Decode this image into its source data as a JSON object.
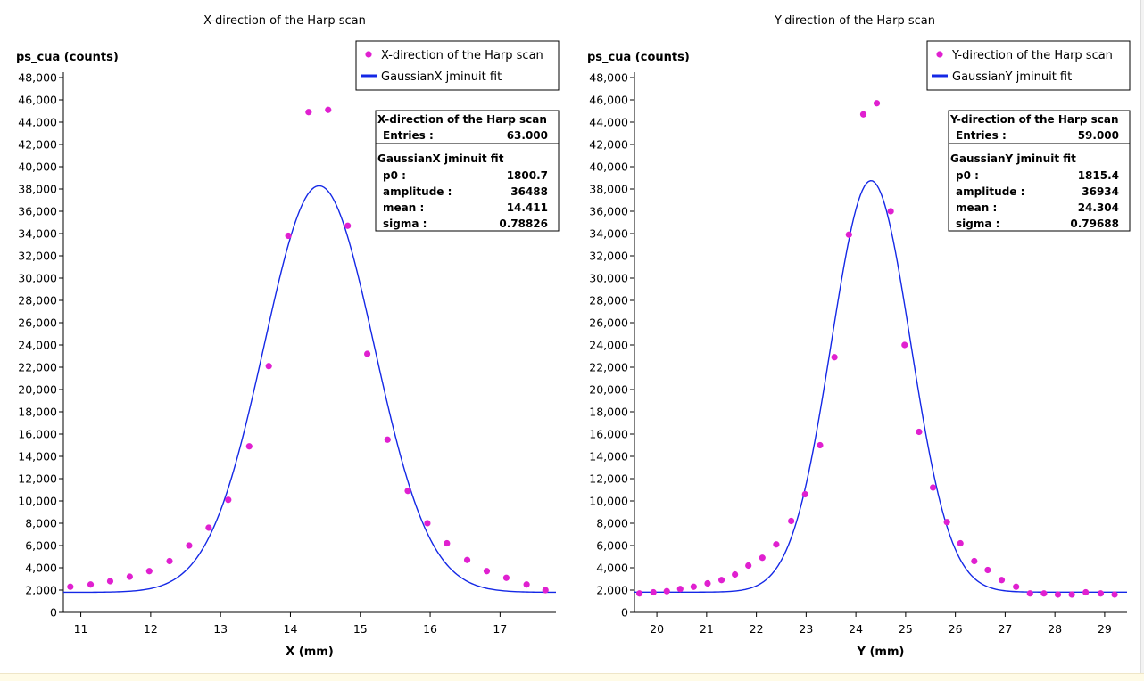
{
  "colors": {
    "points": "#e020d0",
    "fit_line": "#1428e6",
    "axis": "#000000",
    "stats_border": "#000000"
  },
  "chart_data": [
    {
      "type": "scatter",
      "title": "X-direction of the Harp scan",
      "ylabel": "ps_cua (counts)",
      "xlabel": "X (mm)",
      "xlim": [
        10.75,
        17.8
      ],
      "ylim": [
        0,
        48000
      ],
      "x_ticks": [
        11,
        12,
        13,
        14,
        15,
        16,
        17
      ],
      "y_ticks": [
        0,
        2000,
        4000,
        6000,
        8000,
        10000,
        12000,
        14000,
        16000,
        18000,
        20000,
        22000,
        24000,
        26000,
        28000,
        30000,
        32000,
        34000,
        36000,
        38000,
        40000,
        42000,
        44000,
        46000,
        48000
      ],
      "y_tick_labels": [
        "0",
        "2,000",
        "4,000",
        "6,000",
        "8,000",
        "10,000",
        "12,000",
        "14,000",
        "16,000",
        "18,000",
        "20,000",
        "22,000",
        "24,000",
        "26,000",
        "28,000",
        "30,000",
        "32,000",
        "34,000",
        "36,000",
        "38,000",
        "40,000",
        "42,000",
        "44,000",
        "46,000",
        "48,000"
      ],
      "grid": false,
      "legend_position": "top-right",
      "legend": [
        {
          "label": "X-direction of the Harp scan",
          "kind": "marker"
        },
        {
          "label": "GaussianX jminuit fit",
          "kind": "line"
        }
      ],
      "series": [
        {
          "name": "X-direction of the Harp scan",
          "kind": "points",
          "x": [
            10.85,
            11.14,
            11.42,
            11.7,
            11.98,
            12.27,
            12.55,
            12.83,
            13.11,
            13.41,
            13.69,
            13.97,
            14.26,
            14.54,
            14.82,
            15.1,
            15.39,
            15.68,
            15.96,
            16.24,
            16.53,
            16.81,
            17.09,
            17.38,
            17.65
          ],
          "y": [
            2300,
            2500,
            2800,
            3200,
            3700,
            4600,
            6000,
            7600,
            10100,
            14900,
            22100,
            33800,
            44900,
            45100,
            34700,
            23200,
            15500,
            10900,
            8000,
            6200,
            4700,
            3700,
            3100,
            2500,
            2000
          ]
        },
        {
          "name": "GaussianX jminuit fit",
          "kind": "gaussian",
          "p0": 1800.7,
          "amplitude": 36488,
          "mean": 14.411,
          "sigma": 0.78826
        }
      ],
      "stats": {
        "header": "X-direction of the Harp scan",
        "entries_label": "Entries :",
        "entries_value": "63.000",
        "fit_title": "GaussianX jminuit fit",
        "rows": [
          {
            "label": "p0 :",
            "value": "1800.7"
          },
          {
            "label": "amplitude :",
            "value": "36488"
          },
          {
            "label": "mean :",
            "value": "14.411"
          },
          {
            "label": "sigma :",
            "value": "0.78826"
          }
        ]
      }
    },
    {
      "type": "scatter",
      "title": "Y-direction of the Harp scan",
      "ylabel": "ps_cua (counts)",
      "xlabel": "Y (mm)",
      "xlim": [
        19.55,
        29.45
      ],
      "ylim": [
        0,
        48000
      ],
      "x_ticks": [
        20,
        21,
        22,
        23,
        24,
        25,
        26,
        27,
        28,
        29
      ],
      "y_ticks": [
        0,
        2000,
        4000,
        6000,
        8000,
        10000,
        12000,
        14000,
        16000,
        18000,
        20000,
        22000,
        24000,
        26000,
        28000,
        30000,
        32000,
        34000,
        36000,
        38000,
        40000,
        42000,
        44000,
        46000,
        48000
      ],
      "y_tick_labels": [
        "0",
        "2,000",
        "4,000",
        "6,000",
        "8,000",
        "10,000",
        "12,000",
        "14,000",
        "16,000",
        "18,000",
        "20,000",
        "22,000",
        "24,000",
        "26,000",
        "28,000",
        "30,000",
        "32,000",
        "34,000",
        "36,000",
        "38,000",
        "40,000",
        "42,000",
        "44,000",
        "46,000",
        "48,000"
      ],
      "grid": false,
      "legend_position": "top-right",
      "legend": [
        {
          "label": "Y-direction of the Harp scan",
          "kind": "marker"
        },
        {
          "label": "GaussianY jminuit fit",
          "kind": "line"
        }
      ],
      "series": [
        {
          "name": "Y-direction of the Harp scan",
          "kind": "points",
          "x": [
            19.65,
            19.93,
            20.2,
            20.47,
            20.74,
            21.02,
            21.3,
            21.57,
            21.84,
            22.12,
            22.4,
            22.7,
            22.98,
            23.28,
            23.57,
            23.86,
            24.15,
            24.42,
            24.7,
            24.98,
            25.27,
            25.55,
            25.83,
            26.1,
            26.38,
            26.65,
            26.93,
            27.22,
            27.5,
            27.78,
            28.06,
            28.34,
            28.62,
            28.92,
            29.2
          ],
          "y": [
            1700,
            1800,
            1900,
            2100,
            2300,
            2600,
            2900,
            3400,
            4200,
            4900,
            6100,
            8200,
            10600,
            15000,
            22900,
            33900,
            44700,
            45700,
            36000,
            24000,
            16200,
            11200,
            8100,
            6200,
            4600,
            3800,
            2900,
            2300,
            1700,
            1700,
            1600,
            1600,
            1800,
            1700,
            1600
          ]
        },
        {
          "name": "GaussianY jminuit fit",
          "kind": "gaussian",
          "p0": 1815.4,
          "amplitude": 36934,
          "mean": 24.304,
          "sigma": 0.79688
        }
      ],
      "stats": {
        "header": "Y-direction of the Harp scan",
        "entries_label": "Entries :",
        "entries_value": "59.000",
        "fit_title": "GaussianY jminuit fit",
        "rows": [
          {
            "label": "p0 :",
            "value": "1815.4"
          },
          {
            "label": "amplitude :",
            "value": "36934"
          },
          {
            "label": "mean :",
            "value": "24.304"
          },
          {
            "label": "sigma :",
            "value": "0.79688"
          }
        ]
      }
    }
  ]
}
